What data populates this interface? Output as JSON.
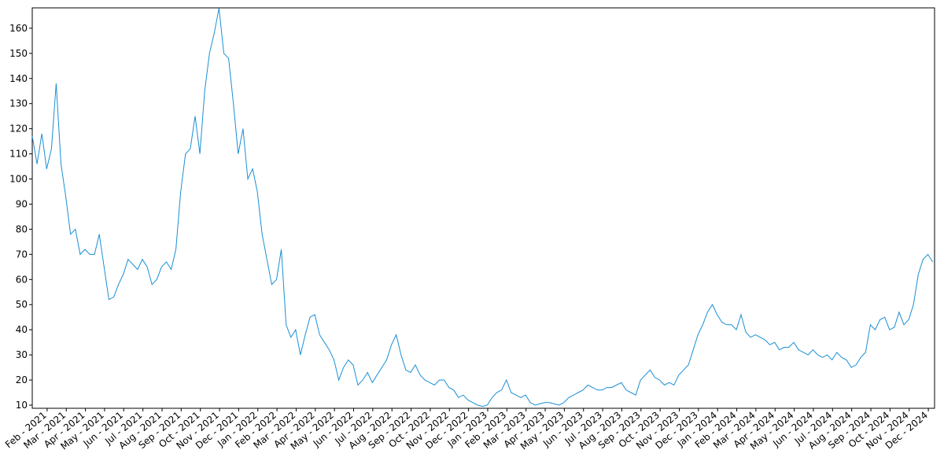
{
  "chart_data": {
    "type": "line",
    "color": "#1a8fd4",
    "values": [
      117,
      106,
      118,
      104,
      112,
      138,
      106,
      93,
      78,
      80,
      70,
      72,
      70,
      70,
      78,
      65,
      52,
      53,
      58,
      62,
      68,
      66,
      64,
      68,
      65,
      58,
      60,
      65,
      67,
      64,
      72,
      95,
      110,
      112,
      125,
      110,
      135,
      150,
      158,
      168,
      150,
      148,
      130,
      110,
      120,
      100,
      104,
      95,
      78,
      68,
      58,
      60,
      72,
      42,
      37,
      40,
      30,
      38,
      45,
      46,
      38,
      35,
      32,
      28,
      20,
      25,
      28,
      26,
      18,
      20,
      23,
      19,
      22,
      25,
      28,
      34,
      38,
      30,
      24,
      23,
      26,
      22,
      20,
      19,
      18,
      20,
      20,
      17,
      16,
      13,
      14,
      12,
      11,
      10,
      9.5,
      10,
      13,
      15,
      16,
      20,
      15,
      14,
      13,
      14,
      11,
      10,
      10.5,
      11,
      11,
      10.5,
      10,
      11,
      13,
      14,
      15,
      16,
      18,
      17,
      16,
      16,
      17,
      17,
      18,
      19,
      16,
      15,
      14,
      20,
      22,
      24,
      21,
      20,
      18,
      19,
      18,
      22,
      24,
      26,
      32,
      38,
      42,
      47,
      50,
      46,
      43,
      42,
      42,
      40,
      46,
      39,
      37,
      38,
      37,
      36,
      34,
      35,
      32,
      33,
      33,
      35,
      32,
      31,
      30,
      32,
      30,
      29,
      30,
      28,
      31,
      29,
      28,
      25,
      26,
      29,
      31,
      42,
      40,
      44,
      45,
      40,
      41,
      47,
      42,
      44,
      50,
      62,
      68,
      70,
      67
    ],
    "xlim": [
      0,
      188.4
    ],
    "xticks": [
      {
        "value": 3.1,
        "label": "Feb - 2021"
      },
      {
        "value": 7.1,
        "label": "Mar - 2021"
      },
      {
        "value": 11.1,
        "label": "Apr - 2021"
      },
      {
        "value": 15.1,
        "label": "May - 2021"
      },
      {
        "value": 19.1,
        "label": "Jun - 2021"
      },
      {
        "value": 23.1,
        "label": "Jul - 2021"
      },
      {
        "value": 27.1,
        "label": "Aug - 2021"
      },
      {
        "value": 31.1,
        "label": "Sep - 2021"
      },
      {
        "value": 35.1,
        "label": "Oct - 2021"
      },
      {
        "value": 39.1,
        "label": "Nov - 2021"
      },
      {
        "value": 43.1,
        "label": "Dec - 2021"
      },
      {
        "value": 47.1,
        "label": "Jan - 2022"
      },
      {
        "value": 51.1,
        "label": "Feb - 2022"
      },
      {
        "value": 55.1,
        "label": "Mar - 2022"
      },
      {
        "value": 59.1,
        "label": "Apr - 2022"
      },
      {
        "value": 63.1,
        "label": "May - 2022"
      },
      {
        "value": 67.1,
        "label": "Jun - 2022"
      },
      {
        "value": 71.1,
        "label": "Jul - 2022"
      },
      {
        "value": 75.1,
        "label": "Aug - 2022"
      },
      {
        "value": 79.1,
        "label": "Sep - 2022"
      },
      {
        "value": 83.1,
        "label": "Oct - 2022"
      },
      {
        "value": 87.1,
        "label": "Nov - 2022"
      },
      {
        "value": 91.1,
        "label": "Dec - 2022"
      },
      {
        "value": 95.1,
        "label": "Jan - 2023"
      },
      {
        "value": 99.1,
        "label": "Feb - 2023"
      },
      {
        "value": 103.1,
        "label": "Mar - 2023"
      },
      {
        "value": 107.1,
        "label": "Apr - 2023"
      },
      {
        "value": 111.1,
        "label": "May - 2023"
      },
      {
        "value": 115.1,
        "label": "Jun - 2023"
      },
      {
        "value": 119.1,
        "label": "Jul - 2023"
      },
      {
        "value": 123.1,
        "label": "Aug - 2023"
      },
      {
        "value": 127.1,
        "label": "Sep - 2023"
      },
      {
        "value": 131.1,
        "label": "Oct - 2023"
      },
      {
        "value": 135.1,
        "label": "Nov - 2023"
      },
      {
        "value": 139.1,
        "label": "Dec - 2023"
      },
      {
        "value": 143.1,
        "label": "Jan - 2024"
      },
      {
        "value": 147.1,
        "label": "Feb - 2024"
      },
      {
        "value": 151.1,
        "label": "Mar - 2024"
      },
      {
        "value": 155.1,
        "label": "Apr - 2024"
      },
      {
        "value": 159.1,
        "label": "May - 2024"
      },
      {
        "value": 163.1,
        "label": "Jun - 2024"
      },
      {
        "value": 167.1,
        "label": "Jul - 2024"
      },
      {
        "value": 171.1,
        "label": "Aug - 2024"
      },
      {
        "value": 175.1,
        "label": "Sep - 2024"
      },
      {
        "value": 179.1,
        "label": "Oct - 2024"
      },
      {
        "value": 183.1,
        "label": "Nov - 2024"
      },
      {
        "value": 187.1,
        "label": "Dec - 2024"
      }
    ],
    "ylim": [
      8.75,
      168.1
    ],
    "yticks": [
      10,
      20,
      30,
      40,
      50,
      60,
      70,
      80,
      90,
      100,
      110,
      120,
      130,
      140,
      150,
      160
    ],
    "grid": false
  }
}
